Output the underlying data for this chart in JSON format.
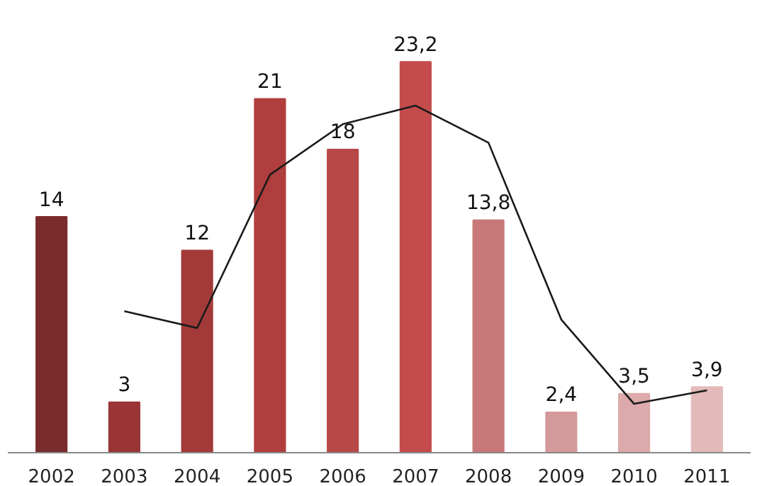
{
  "chart_data": {
    "type": "bar",
    "categories": [
      "2002",
      "2003",
      "2004",
      "2005",
      "2006",
      "2007",
      "2008",
      "2009",
      "2010",
      "2011"
    ],
    "series": [
      {
        "values": [
          14,
          3,
          12,
          21,
          18,
          23.2,
          13.8,
          2.4,
          3.5,
          3.9
        ],
        "value_labels": [
          "14",
          "3",
          "12",
          "21",
          "18",
          "23,2",
          "13,8",
          "2,4",
          "3,5",
          "3,9"
        ],
        "colors": [
          "#7a2c2c",
          "#993535",
          "#a33a3a",
          "#b03e3e",
          "#b84848",
          "#c44c4c",
          "#c87878",
          "#d49a9a",
          "#dcaaaa",
          "#e2baba"
        ]
      },
      {
        "type": "line",
        "color": "#1a1a1a",
        "values": [
          null,
          8.4,
          7.4,
          16.5,
          19.5,
          20.6,
          18.4,
          7.9,
          2.9,
          3.7
        ]
      }
    ],
    "grid": false
  }
}
